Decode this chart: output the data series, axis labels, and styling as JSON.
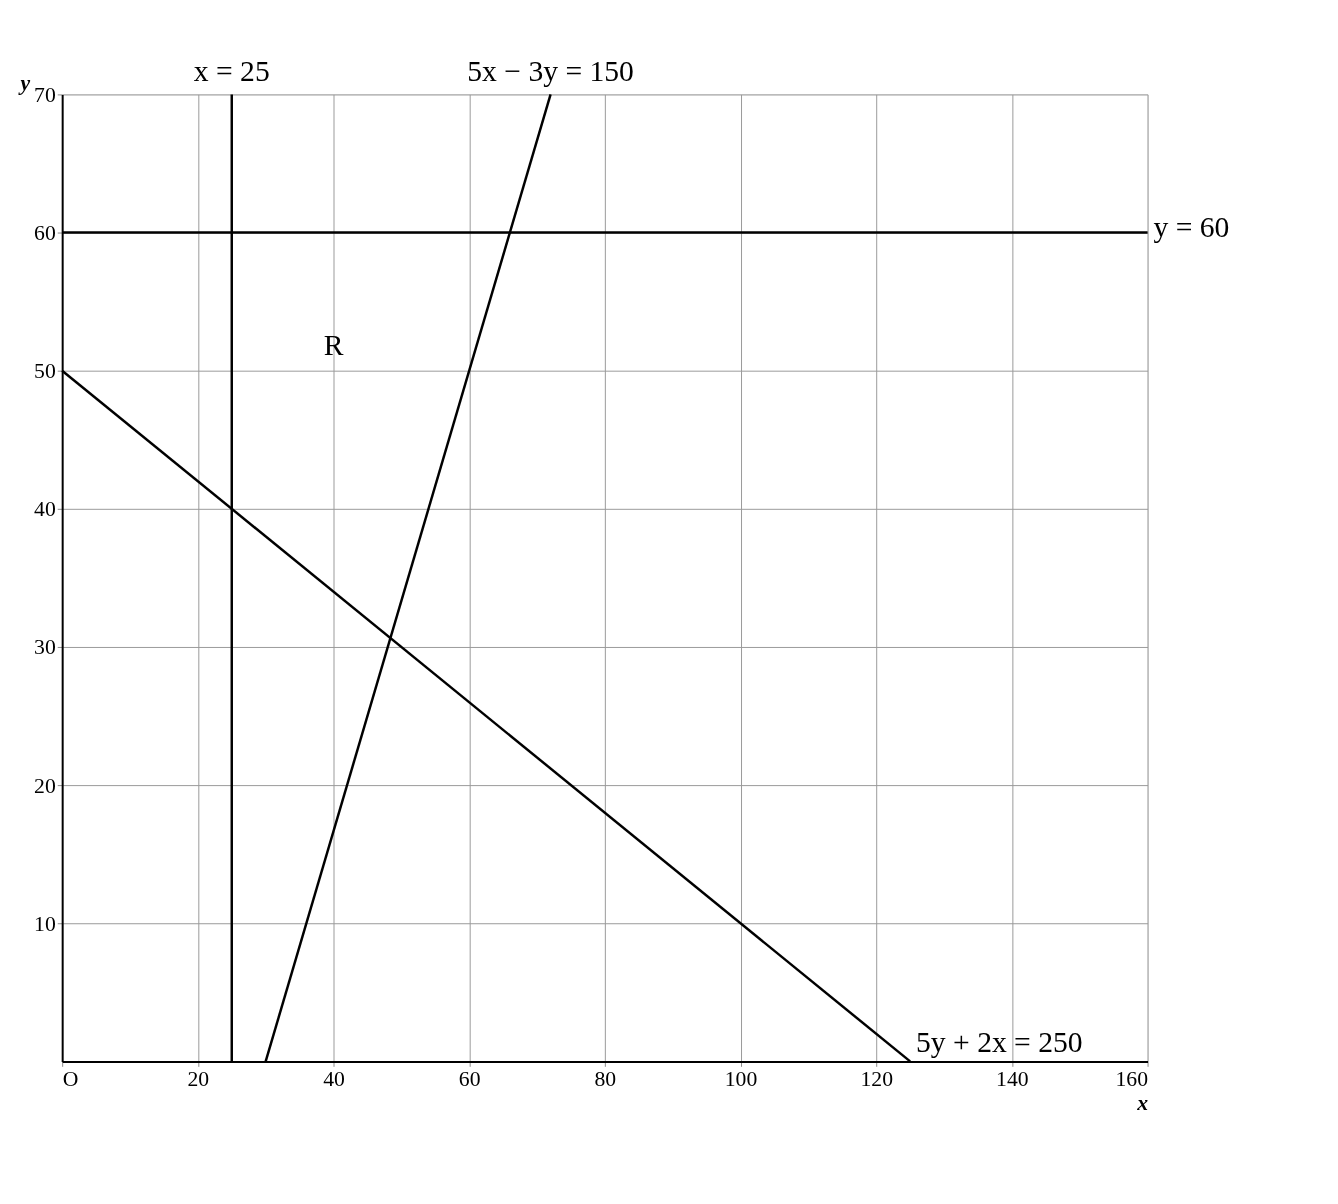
{
  "chart_data": {
    "type": "line",
    "xlabel": "x",
    "ylabel": "y",
    "xlim": [
      0,
      160
    ],
    "ylim": [
      0,
      70
    ],
    "xticks": [
      {
        "value": 0,
        "label": "O"
      },
      20,
      40,
      60,
      80,
      100,
      120,
      140,
      160
    ],
    "yticks": [
      10,
      20,
      30,
      40,
      50,
      60,
      70
    ],
    "grid": true,
    "marker": "none",
    "line_style": "solid",
    "series": [
      {
        "color": "#000000",
        "x": [
          25,
          25
        ],
        "values": [
          0,
          70
        ]
      },
      {
        "color": "#000000",
        "x": [
          0,
          160
        ],
        "values": [
          60,
          60
        ]
      },
      {
        "color": "#000000",
        "x": [
          30,
          72
        ],
        "values": [
          0,
          70
        ]
      },
      {
        "color": "#000000",
        "x": [
          0,
          125
        ],
        "values": [
          50,
          0
        ]
      }
    ],
    "annotations": [
      {
        "text": "x = 25",
        "x": 25,
        "y": 70
      },
      {
        "text": "5x − 3y = 150",
        "x": 72,
        "y": 70
      },
      {
        "text": "y = 60",
        "x": 160,
        "y": 60
      },
      {
        "text": "5y + 2x = 250",
        "x": 125,
        "y": 0
      },
      "R"
    ]
  }
}
